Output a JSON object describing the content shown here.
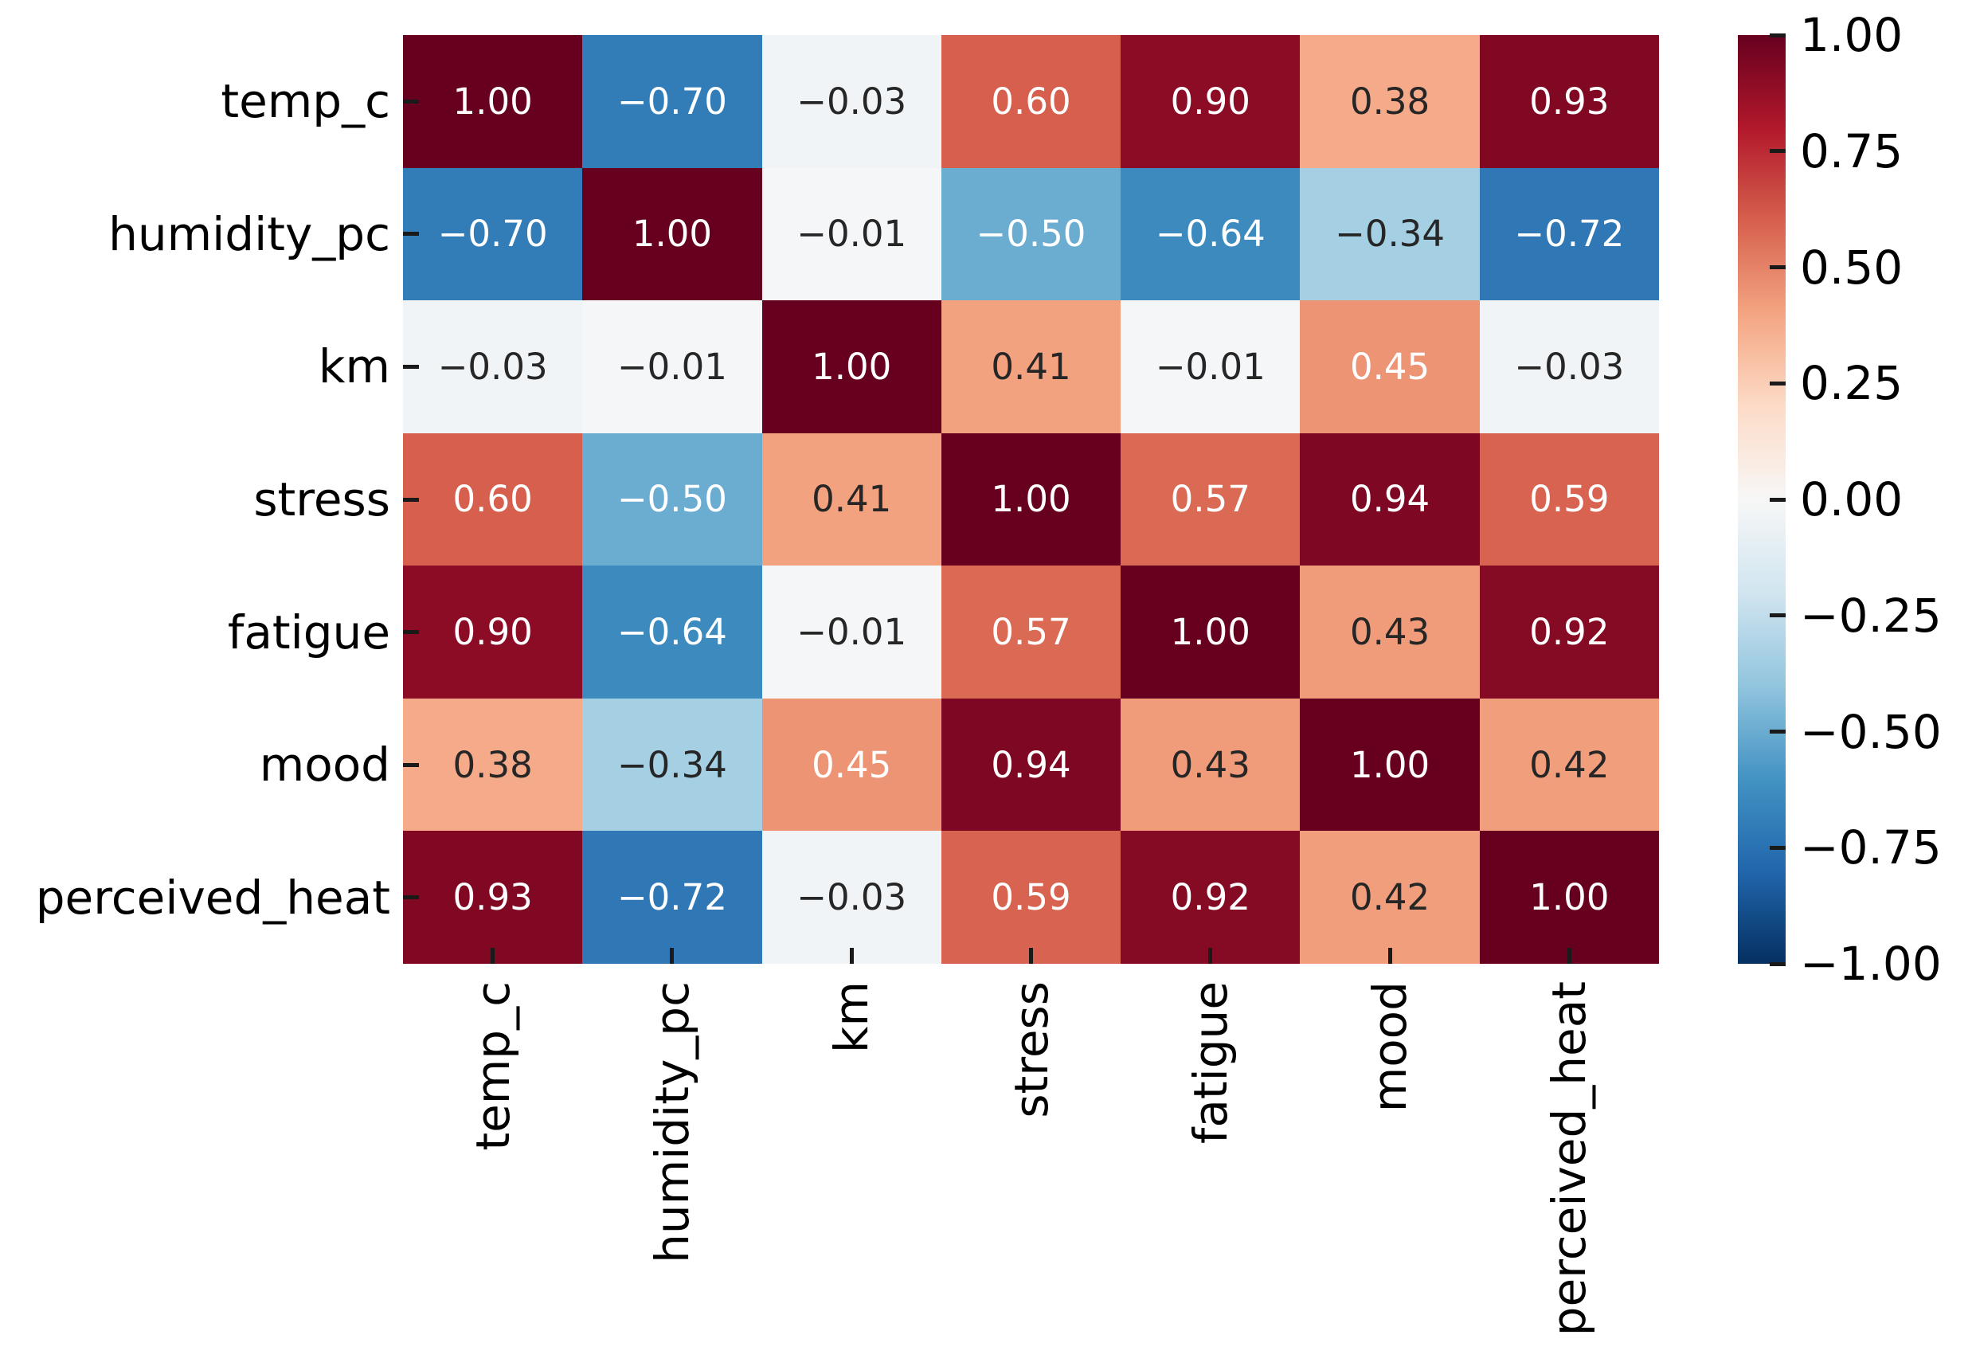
{
  "figure": {
    "kind": "correlation-heatmap",
    "background": "#ffffff"
  },
  "chart_data": {
    "type": "heatmap",
    "title": "",
    "xlabel": "",
    "ylabel": "",
    "variables": [
      "temp_c",
      "humidity_pc",
      "km",
      "stress",
      "fatigue",
      "mood",
      "perceived_heat"
    ],
    "x_tick_labels": [
      "temp_c",
      "humidity_pc",
      "km",
      "stress",
      "fatigue",
      "mood",
      "perceived_heat"
    ],
    "y_tick_labels": [
      "temp_c",
      "humidity_pc",
      "km",
      "stress",
      "fatigue",
      "mood",
      "perceived_heat"
    ],
    "matrix": [
      [
        1.0,
        -0.7,
        -0.03,
        0.6,
        0.9,
        0.38,
        0.93
      ],
      [
        -0.7,
        1.0,
        -0.01,
        -0.5,
        -0.64,
        -0.34,
        -0.72
      ],
      [
        -0.03,
        -0.01,
        1.0,
        0.41,
        -0.01,
        0.45,
        -0.03
      ],
      [
        0.6,
        -0.5,
        0.41,
        1.0,
        0.57,
        0.94,
        0.59
      ],
      [
        0.9,
        -0.64,
        -0.01,
        0.57,
        1.0,
        0.43,
        0.92
      ],
      [
        0.38,
        -0.34,
        0.45,
        0.94,
        0.43,
        1.0,
        0.42
      ],
      [
        0.93,
        -0.72,
        -0.03,
        0.59,
        0.92,
        0.42,
        1.0
      ]
    ],
    "annotation_texts": [
      [
        "1.00",
        "−0.70",
        "−0.03",
        "0.60",
        "0.90",
        "0.38",
        "0.93"
      ],
      [
        "−0.70",
        "1.00",
        "−0.01",
        "−0.50",
        "−0.64",
        "−0.34",
        "−0.72"
      ],
      [
        "−0.03",
        "−0.01",
        "1.00",
        "0.41",
        "−0.01",
        "0.45",
        "−0.03"
      ],
      [
        "0.60",
        "−0.50",
        "0.41",
        "1.00",
        "0.57",
        "0.94",
        "0.59"
      ],
      [
        "0.90",
        "−0.64",
        "−0.01",
        "0.57",
        "1.00",
        "0.43",
        "0.92"
      ],
      [
        "0.38",
        "−0.34",
        "0.45",
        "0.94",
        "0.43",
        "1.00",
        "0.42"
      ],
      [
        "0.93",
        "−0.72",
        "−0.03",
        "0.59",
        "0.92",
        "0.42",
        "1.00"
      ]
    ],
    "vmin": -1,
    "vmax": 1,
    "annotation_decimals": 2,
    "colormap": "RdBu_r",
    "colormap_anchors_low_to_high": [
      "#053061",
      "#2166ac",
      "#4393c3",
      "#92c5de",
      "#d1e5f0",
      "#f7f7f7",
      "#fddbc7",
      "#f4a582",
      "#d6604d",
      "#b2182b",
      "#67001f"
    ],
    "colorbar": {
      "tick_values": [
        1.0,
        0.75,
        0.5,
        0.25,
        0.0,
        -0.25,
        -0.5,
        -0.75,
        -1.0
      ],
      "tick_labels": [
        "1.00",
        "0.75",
        "0.50",
        "0.25",
        "0.00",
        "−0.25",
        "−0.50",
        "−0.75",
        "−1.00"
      ]
    },
    "grid": false,
    "legend": null
  },
  "style_colors": {
    "annotation_dark": "#262626",
    "annotation_light": "#ffffff",
    "tick_mark_color": "#1a1a1a",
    "tick_label_color": "#000000",
    "background": "#ffffff"
  }
}
